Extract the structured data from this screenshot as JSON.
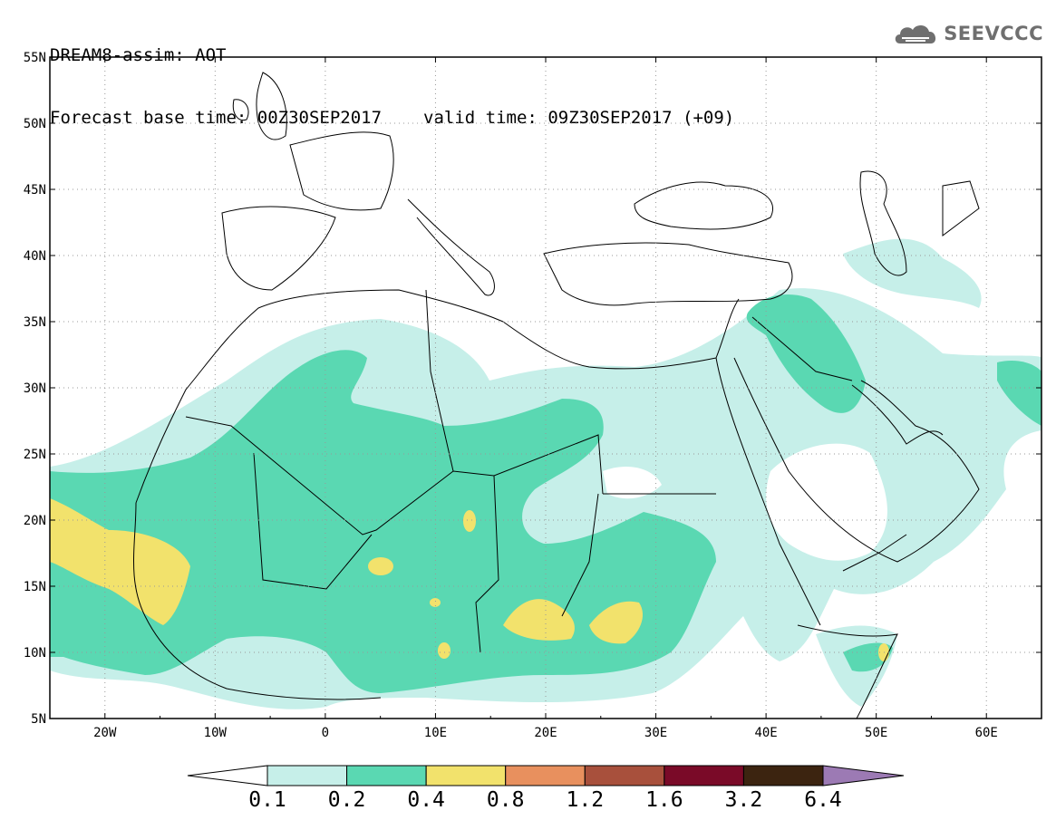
{
  "header": {
    "model_line": "DREAM8-assim: AOT",
    "forecast_base": "Forecast base time: 00Z30SEP2017",
    "valid_time": "valid time: 09Z30SEP2017 (+09)",
    "logo_text": "SEEVCCC"
  },
  "map": {
    "lat_labels": [
      "55N",
      "50N",
      "45N",
      "40N",
      "35N",
      "30N",
      "25N",
      "20N",
      "15N",
      "10N",
      "5N"
    ],
    "lon_labels": [
      "20W",
      "10W",
      "0",
      "10E",
      "20E",
      "30E",
      "40E",
      "50E",
      "60E"
    ],
    "lat_range": [
      5,
      55
    ],
    "lon_range": [
      -25,
      65
    ],
    "grid": "dotted"
  },
  "colorbar": {
    "levels": [
      "0.1",
      "0.2",
      "0.4",
      "0.8",
      "1.2",
      "1.6",
      "3.2",
      "6.4"
    ],
    "colors": [
      "#ffffff",
      "#c6efe9",
      "#5ad8b2",
      "#f2e26c",
      "#e8905e",
      "#a8503c",
      "#7a0a28",
      "#3c2410",
      "#9c7ab4"
    ]
  }
}
